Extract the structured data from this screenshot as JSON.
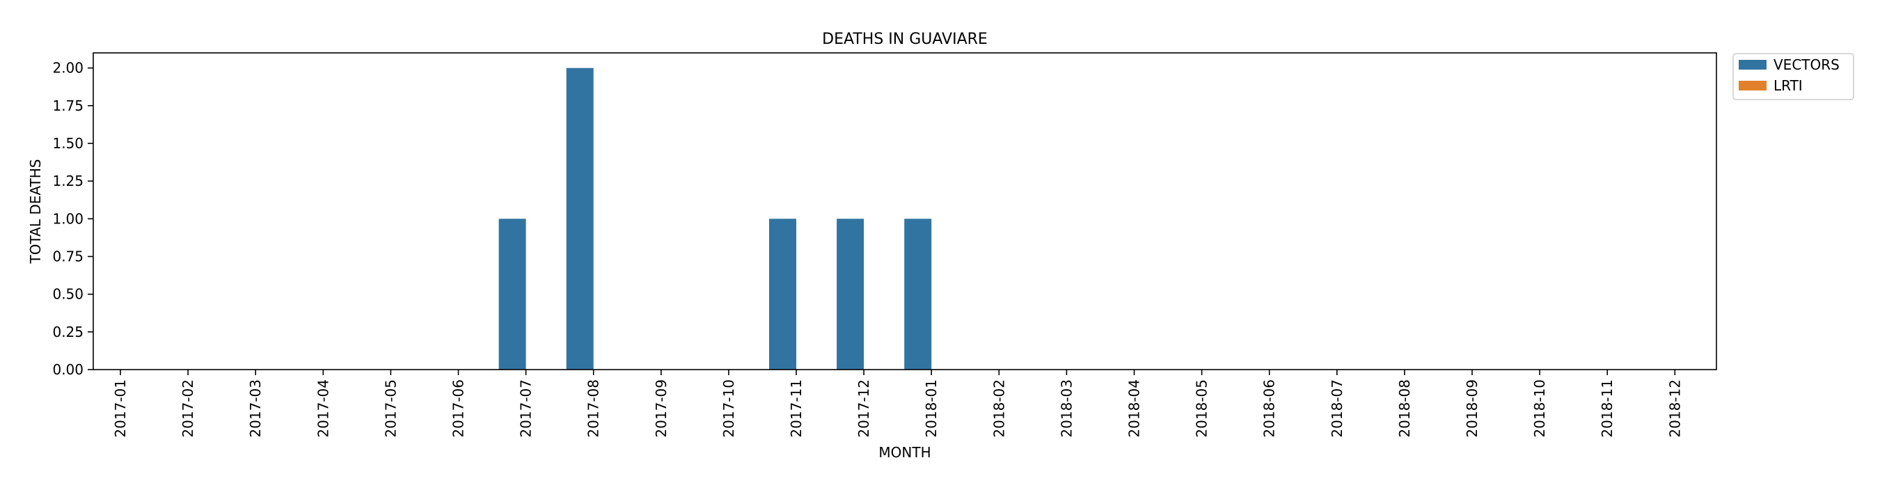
{
  "chart_data": {
    "type": "bar",
    "title": "DEATHS IN GUAVIARE",
    "xlabel": "MONTH",
    "ylabel": "TOTAL DEATHS",
    "ylim": [
      0,
      2.1
    ],
    "yticks": [
      "0.00",
      "0.25",
      "0.50",
      "0.75",
      "1.00",
      "1.25",
      "1.50",
      "1.75",
      "2.00"
    ],
    "grid": false,
    "legend_position": "outside-top-right",
    "categories": [
      "2017-01",
      "2017-02",
      "2017-03",
      "2017-04",
      "2017-05",
      "2017-06",
      "2017-07",
      "2017-08",
      "2017-09",
      "2017-10",
      "2017-11",
      "2017-12",
      "2018-01",
      "2018-02",
      "2018-03",
      "2018-04",
      "2018-05",
      "2018-06",
      "2018-07",
      "2018-08",
      "2018-09",
      "2018-10",
      "2018-11",
      "2018-12"
    ],
    "series": [
      {
        "name": "VECTORS",
        "color": "#3274a1",
        "values": [
          0,
          0,
          0,
          0,
          0,
          0,
          1,
          2,
          0,
          0,
          1,
          1,
          1,
          0,
          0,
          0,
          0,
          0,
          0,
          0,
          0,
          0,
          0,
          0
        ]
      },
      {
        "name": "LRTI",
        "color": "#e1812c",
        "values": [
          0,
          0,
          0,
          0,
          0,
          0,
          0,
          0,
          0,
          0,
          0,
          0,
          0,
          0,
          0,
          0,
          0,
          0,
          0,
          0,
          0,
          0,
          0,
          0
        ]
      }
    ]
  }
}
